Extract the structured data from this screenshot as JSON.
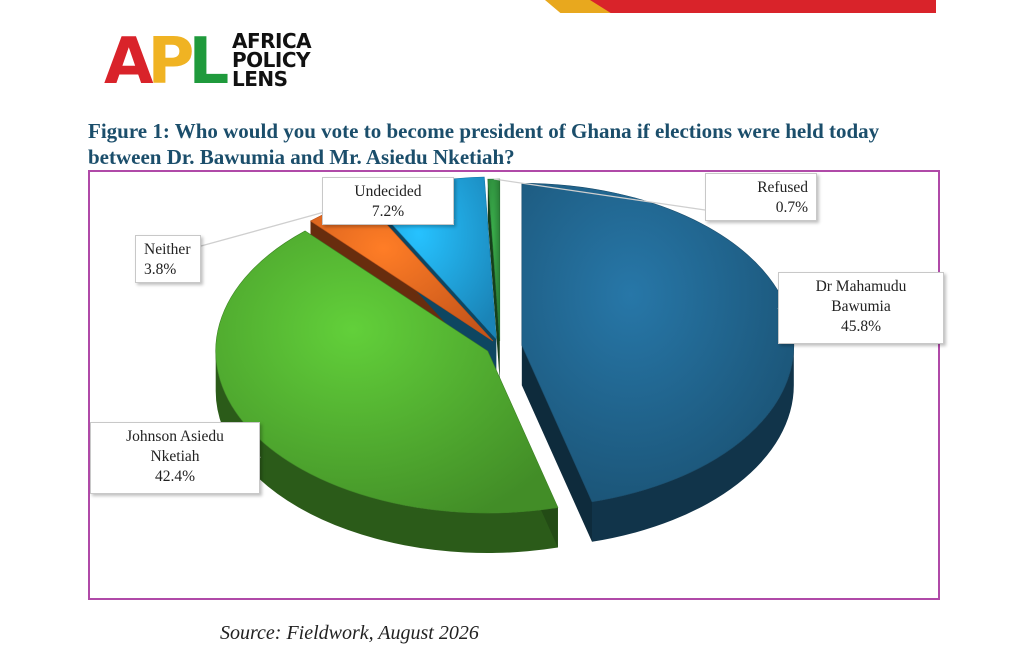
{
  "brand": {
    "logo_letters": [
      "A",
      "P",
      "L"
    ],
    "logo_words": [
      "AFRICA",
      "POLICY",
      "LENS"
    ],
    "colors": {
      "red": "#d9232a",
      "yellow": "#f0b323",
      "green": "#1f9a3c"
    }
  },
  "figure": {
    "title": "Figure 1: Who would you vote to become president of Ghana if elections were held today between Dr. Bawumia and Mr. Asiedu Nketiah?",
    "source": "Source: Fieldwork, August 2026"
  },
  "chart_data": {
    "type": "pie",
    "style": "3d exploded",
    "slices": [
      {
        "label_lines": [
          "Dr Mahamudu",
          "Bawumia"
        ],
        "value": 45.8,
        "value_label": "45.8%",
        "color": "#1f5f86"
      },
      {
        "label_lines": [
          "Johnson Asiedu",
          "Nketiah"
        ],
        "value": 42.4,
        "value_label": "42.4%",
        "color": "#4ea62e"
      },
      {
        "label_lines": [
          "Neither"
        ],
        "value": 3.8,
        "value_label": "3.8%",
        "color": "#e8641e"
      },
      {
        "label_lines": [
          "Undecided"
        ],
        "value": 7.2,
        "value_label": "7.2%",
        "color": "#1e9bd7"
      },
      {
        "label_lines": [
          "Refused"
        ],
        "value": 0.7,
        "value_label": "0.7%",
        "color": "#2e8b3c"
      }
    ]
  }
}
